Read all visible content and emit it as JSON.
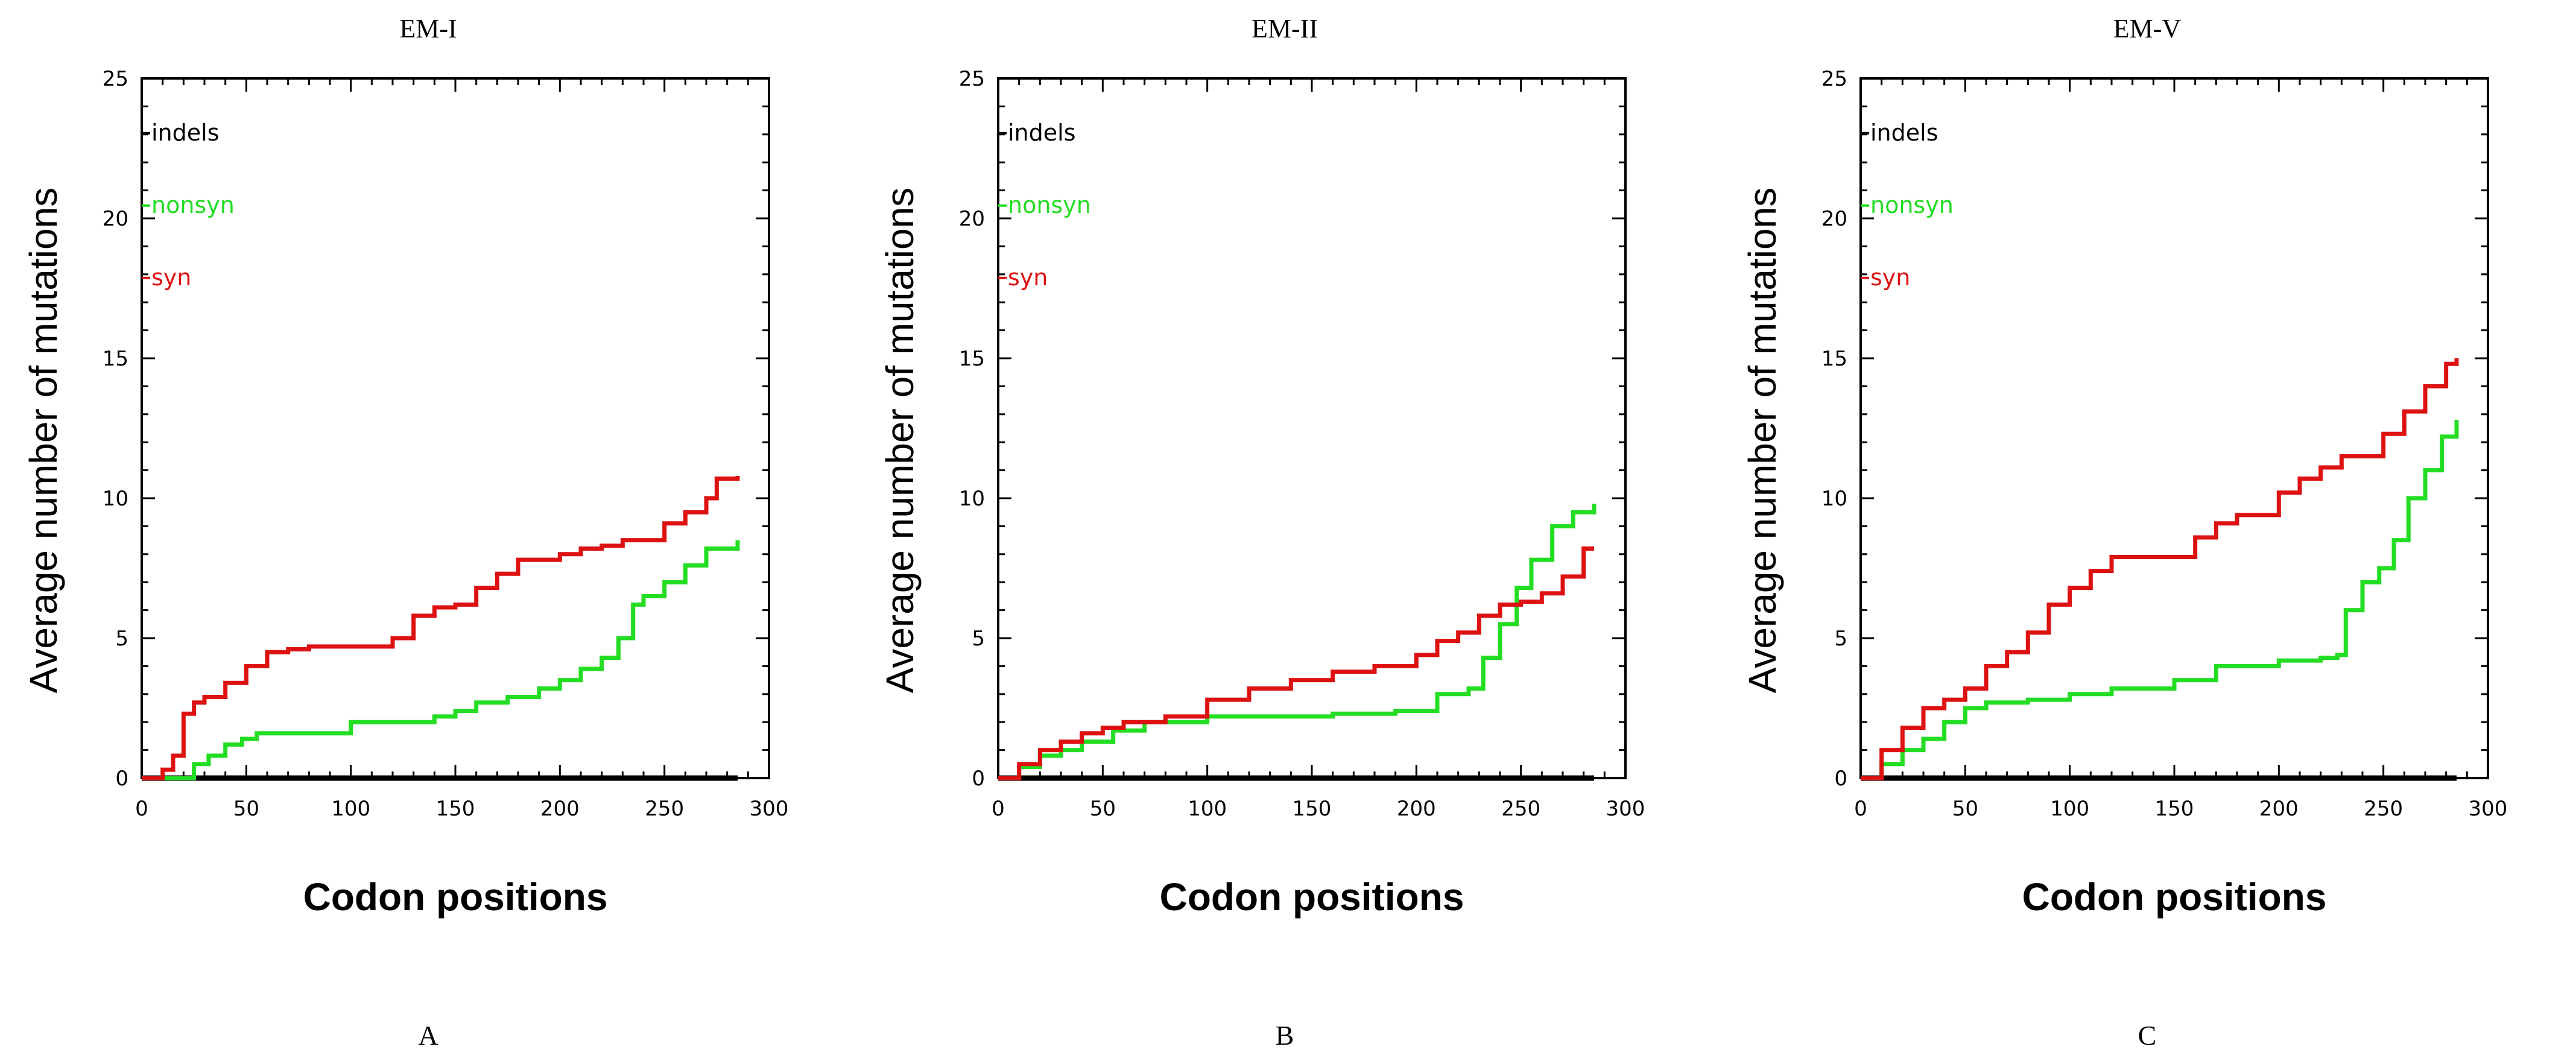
{
  "chart_data": [
    {
      "type": "line",
      "title": "EM-I",
      "panel_label": "A",
      "xlabel": "Codon positions",
      "ylabel": "Average number of mutations",
      "xlim": [
        0,
        300
      ],
      "ylim": [
        0,
        25
      ],
      "xticks": [
        0,
        50,
        100,
        150,
        200,
        250,
        300
      ],
      "yticks": [
        0,
        5,
        10,
        15,
        20,
        25
      ],
      "legend_placement": "top-left",
      "series": [
        {
          "name": "indels",
          "color": "#000000",
          "x": [
            0,
            285
          ],
          "y": [
            0,
            0
          ]
        },
        {
          "name": "nonsyn",
          "color": "#22dd22",
          "x": [
            0,
            18,
            25,
            32,
            40,
            48,
            55,
            70,
            95,
            100,
            125,
            140,
            150,
            160,
            175,
            190,
            200,
            210,
            220,
            228,
            235,
            240,
            250,
            260,
            270,
            285
          ],
          "y": [
            0,
            0,
            0.5,
            0.8,
            1.2,
            1.4,
            1.6,
            1.6,
            1.6,
            2.0,
            2.0,
            2.2,
            2.4,
            2.7,
            2.9,
            3.2,
            3.5,
            3.9,
            4.3,
            5.0,
            6.2,
            6.5,
            7.0,
            7.6,
            8.2,
            8.5
          ]
        },
        {
          "name": "syn",
          "color": "#dd1111",
          "x": [
            0,
            10,
            15,
            20,
            25,
            30,
            40,
            50,
            60,
            70,
            80,
            100,
            120,
            130,
            140,
            150,
            160,
            170,
            180,
            200,
            210,
            220,
            230,
            250,
            260,
            270,
            275,
            285
          ],
          "y": [
            0,
            0.3,
            0.8,
            2.3,
            2.7,
            2.9,
            3.4,
            4.0,
            4.5,
            4.6,
            4.7,
            4.7,
            5.0,
            5.8,
            6.1,
            6.2,
            6.8,
            7.3,
            7.8,
            8.0,
            8.2,
            8.3,
            8.5,
            9.1,
            9.5,
            10.0,
            10.7,
            10.8
          ]
        }
      ]
    },
    {
      "type": "line",
      "title": "EM-II",
      "panel_label": "B",
      "xlabel": "Codon positions",
      "ylabel": "Average number of mutations",
      "xlim": [
        0,
        300
      ],
      "ylim": [
        0,
        25
      ],
      "xticks": [
        0,
        50,
        100,
        150,
        200,
        250,
        300
      ],
      "yticks": [
        0,
        5,
        10,
        15,
        20,
        25
      ],
      "legend_placement": "top-left",
      "series": [
        {
          "name": "indels",
          "color": "#000000",
          "x": [
            0,
            285
          ],
          "y": [
            0,
            0
          ]
        },
        {
          "name": "nonsyn",
          "color": "#22dd22",
          "x": [
            0,
            10,
            20,
            30,
            40,
            55,
            70,
            100,
            130,
            160,
            190,
            210,
            225,
            232,
            240,
            248,
            255,
            265,
            275,
            285
          ],
          "y": [
            0,
            0.4,
            0.8,
            1.0,
            1.3,
            1.7,
            2.0,
            2.2,
            2.2,
            2.3,
            2.4,
            3.0,
            3.2,
            4.3,
            5.5,
            6.8,
            7.8,
            9.0,
            9.5,
            9.8
          ]
        },
        {
          "name": "syn",
          "color": "#dd1111",
          "x": [
            0,
            10,
            20,
            30,
            40,
            50,
            60,
            80,
            100,
            120,
            140,
            160,
            180,
            200,
            210,
            220,
            230,
            240,
            250,
            260,
            270,
            280,
            285
          ],
          "y": [
            0,
            0.5,
            1.0,
            1.3,
            1.6,
            1.8,
            2.0,
            2.2,
            2.8,
            3.2,
            3.5,
            3.8,
            4.0,
            4.4,
            4.9,
            5.2,
            5.8,
            6.2,
            6.3,
            6.6,
            7.2,
            8.2,
            8.2
          ]
        }
      ]
    },
    {
      "type": "line",
      "title": "EM-V",
      "panel_label": "C",
      "xlabel": "Codon positions",
      "ylabel": "Average number of mutations",
      "xlim": [
        0,
        300
      ],
      "ylim": [
        0,
        25
      ],
      "xticks": [
        0,
        50,
        100,
        150,
        200,
        250,
        300
      ],
      "yticks": [
        0,
        5,
        10,
        15,
        20,
        25
      ],
      "legend_placement": "top-left",
      "series": [
        {
          "name": "indels",
          "color": "#000000",
          "x": [
            0,
            285
          ],
          "y": [
            0,
            0
          ]
        },
        {
          "name": "nonsyn",
          "color": "#22dd22",
          "x": [
            0,
            10,
            20,
            30,
            40,
            50,
            60,
            80,
            100,
            120,
            150,
            170,
            200,
            220,
            228,
            232,
            240,
            248,
            255,
            262,
            270,
            278,
            285
          ],
          "y": [
            0,
            0.5,
            1.0,
            1.4,
            2.0,
            2.5,
            2.7,
            2.8,
            3.0,
            3.2,
            3.5,
            4.0,
            4.2,
            4.3,
            4.4,
            6.0,
            7.0,
            7.5,
            8.5,
            10.0,
            11.0,
            12.2,
            12.8
          ]
        },
        {
          "name": "syn",
          "color": "#dd1111",
          "x": [
            0,
            10,
            20,
            30,
            40,
            50,
            60,
            70,
            80,
            90,
            100,
            110,
            120,
            150,
            160,
            170,
            180,
            200,
            210,
            220,
            230,
            250,
            260,
            270,
            280,
            285
          ],
          "y": [
            0,
            1.0,
            1.8,
            2.5,
            2.8,
            3.2,
            4.0,
            4.5,
            5.2,
            6.2,
            6.8,
            7.4,
            7.9,
            7.9,
            8.6,
            9.1,
            9.4,
            10.2,
            10.7,
            11.1,
            11.5,
            12.3,
            13.1,
            14.0,
            14.8,
            15.0
          ]
        }
      ]
    }
  ]
}
